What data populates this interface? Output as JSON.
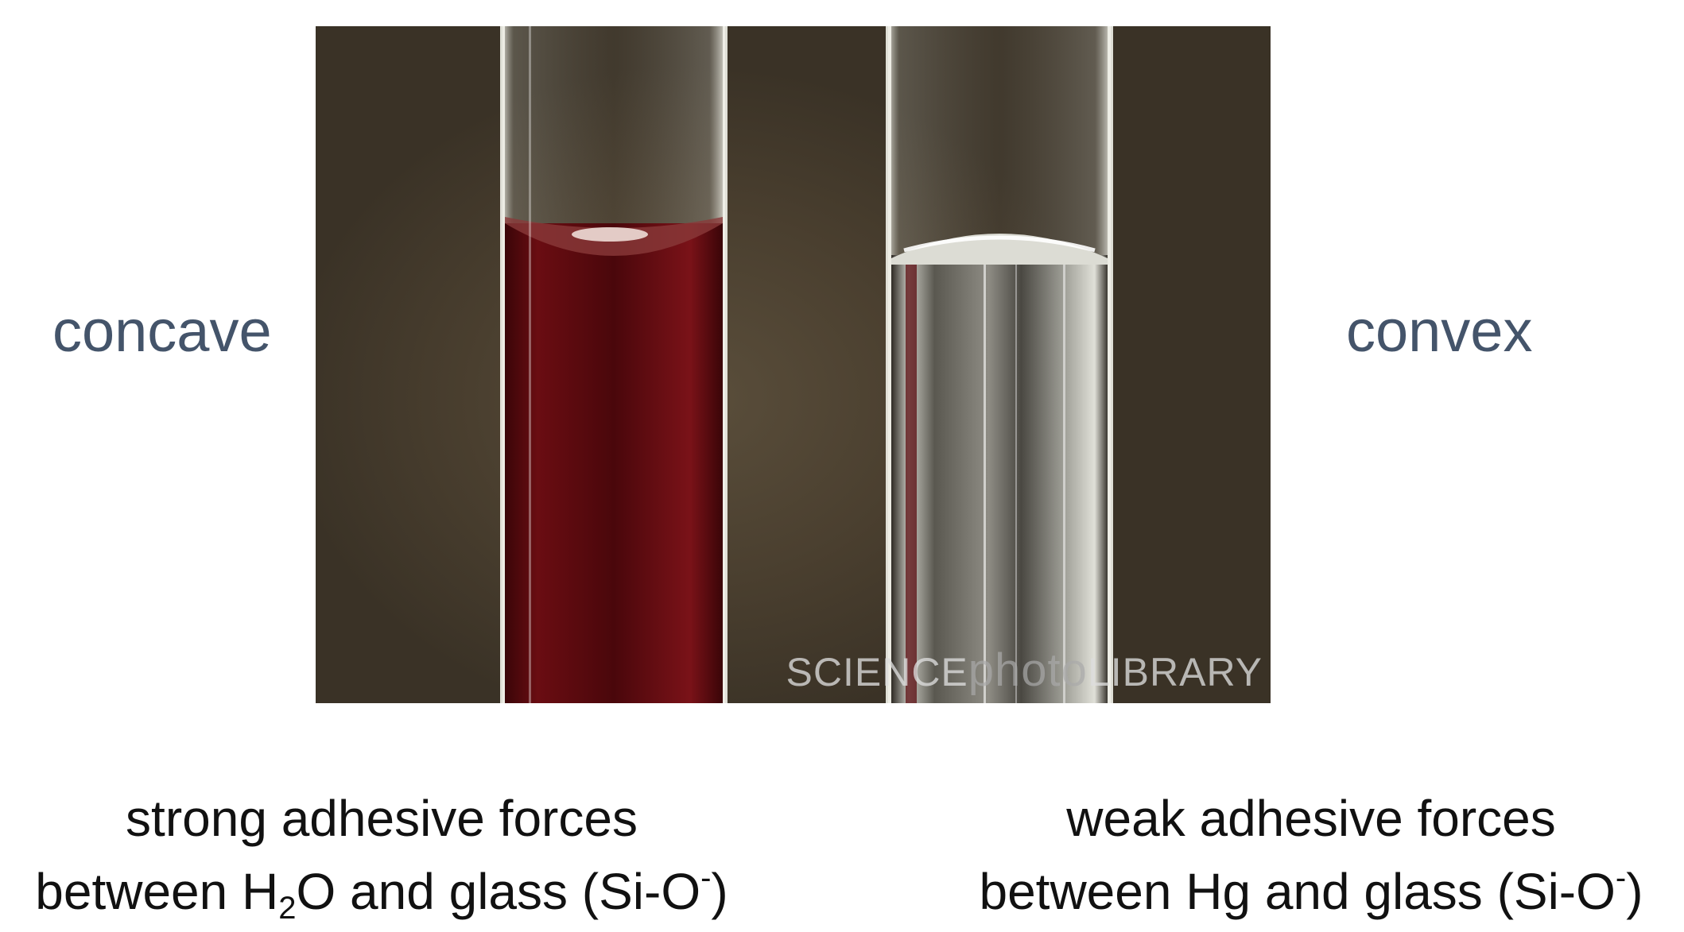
{
  "labels": {
    "left": "concave",
    "right": "convex"
  },
  "photo": {
    "watermark_left": "SCIENCE",
    "watermark_mid": "photo",
    "watermark_right": "LIBRARY",
    "colors": {
      "background": "#4a3f2f",
      "water_liquid": "#5a0c10",
      "mercury_liquid": "#9a9a92"
    }
  },
  "captions": {
    "left": {
      "line1": "strong adhesive forces",
      "line2_prefix": "between H",
      "line2_sub": "2",
      "line2_mid": "O and glass (Si-O",
      "line2_sup": "-",
      "line2_suffix": ")"
    },
    "right": {
      "line1": "weak adhesive forces",
      "line2_prefix": "between Hg and glass (Si-O",
      "line2_sup": "-",
      "line2_suffix": ")"
    }
  },
  "colors": {
    "label_text": "#44546a",
    "caption_text": "#111111"
  }
}
